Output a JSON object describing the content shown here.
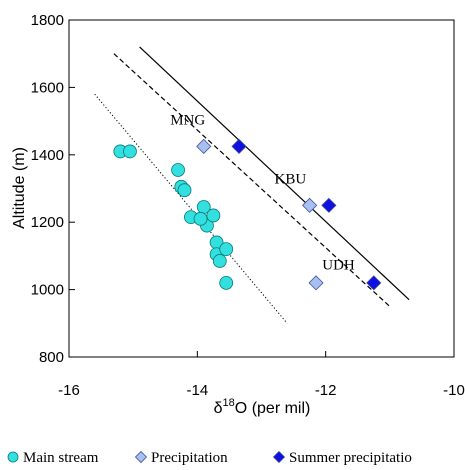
{
  "chart_data": {
    "type": "scatter",
    "xlabel": "δ",
    "xlabel_sup": "18",
    "xlabel_tail": "O (per mil)",
    "ylabel": "Altitude (m)",
    "xlim": [
      -16,
      -10
    ],
    "ylim": [
      800,
      1800
    ],
    "xticks": [
      -16,
      -14,
      -12,
      -10
    ],
    "yticks": [
      800,
      1000,
      1200,
      1400,
      1600,
      1800
    ],
    "grid": false,
    "legend_position": "bottom",
    "series": [
      {
        "name": "Main stream",
        "marker": "circle",
        "color": "#33e0e0",
        "points": [
          {
            "x": -15.2,
            "y": 1410
          },
          {
            "x": -15.05,
            "y": 1410
          },
          {
            "x": -14.3,
            "y": 1355
          },
          {
            "x": -14.25,
            "y": 1305
          },
          {
            "x": -14.2,
            "y": 1295
          },
          {
            "x": -14.1,
            "y": 1215
          },
          {
            "x": -13.9,
            "y": 1245
          },
          {
            "x": -13.85,
            "y": 1190
          },
          {
            "x": -13.95,
            "y": 1210
          },
          {
            "x": -13.75,
            "y": 1220
          },
          {
            "x": -13.7,
            "y": 1140
          },
          {
            "x": -13.7,
            "y": 1105
          },
          {
            "x": -13.65,
            "y": 1085
          },
          {
            "x": -13.55,
            "y": 1120
          },
          {
            "x": -13.55,
            "y": 1020
          }
        ]
      },
      {
        "name": "Precipitation",
        "marker": "diamond",
        "color": "#a8c0f0",
        "points": [
          {
            "x": -13.9,
            "y": 1425
          },
          {
            "x": -12.25,
            "y": 1250
          },
          {
            "x": -12.15,
            "y": 1020
          }
        ]
      },
      {
        "name": "Summer precipitatio",
        "marker": "diamond",
        "color": "#1010e0",
        "points": [
          {
            "x": -13.35,
            "y": 1425
          },
          {
            "x": -11.95,
            "y": 1250
          },
          {
            "x": -11.25,
            "y": 1020
          }
        ]
      }
    ],
    "lines": [
      {
        "style": "dotted",
        "x1": -15.6,
        "y1": 1580,
        "x2": -12.6,
        "y2": 900
      },
      {
        "style": "dashed",
        "x1": -15.3,
        "y1": 1700,
        "x2": -11.0,
        "y2": 950
      },
      {
        "style": "solid",
        "x1": -14.9,
        "y1": 1720,
        "x2": -10.7,
        "y2": 970
      }
    ],
    "annotations": [
      {
        "text": "MNG",
        "x": -14.15,
        "y": 1490
      },
      {
        "text": "KBU",
        "x": -12.55,
        "y": 1315
      },
      {
        "text": "UDH",
        "x": -11.8,
        "y": 1060
      }
    ]
  }
}
